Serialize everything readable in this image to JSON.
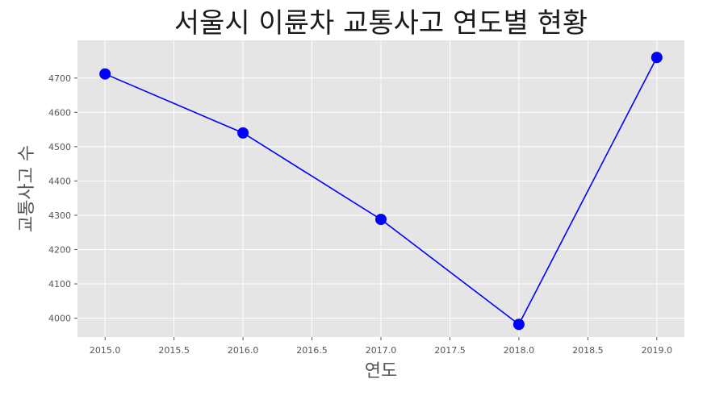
{
  "chart_data": {
    "type": "line",
    "title": "서울시 이륜차 교통사고 연도별 현황",
    "xlabel": "연도",
    "ylabel": "교통사고 수",
    "x": [
      2015,
      2016,
      2017,
      2018,
      2019
    ],
    "series": [
      {
        "values": [
          4712,
          4540,
          4288,
          3982,
          4760
        ]
      }
    ],
    "xlim": [
      2014.8,
      2019.2
    ],
    "ylim": [
      3945,
      4810
    ],
    "xticks": [
      2015.0,
      2015.5,
      2016.0,
      2016.5,
      2017.0,
      2017.5,
      2018.0,
      2018.5,
      2019.0
    ],
    "xtick_labels": [
      "2015.0",
      "2015.5",
      "2016.0",
      "2016.5",
      "2017.0",
      "2017.5",
      "2018.0",
      "2018.5",
      "2019.0"
    ],
    "yticks": [
      4000,
      4100,
      4200,
      4300,
      4400,
      4500,
      4600,
      4700
    ],
    "ytick_labels": [
      "4000",
      "4100",
      "4200",
      "4300",
      "4400",
      "4500",
      "4600",
      "4700"
    ],
    "grid": true,
    "colors": {
      "line": "#0000ff",
      "marker": "#0000ff",
      "plot_background": "#e5e5e5",
      "grid": "#ffffff",
      "text": "#555555",
      "title": "#1a1a1a"
    }
  }
}
